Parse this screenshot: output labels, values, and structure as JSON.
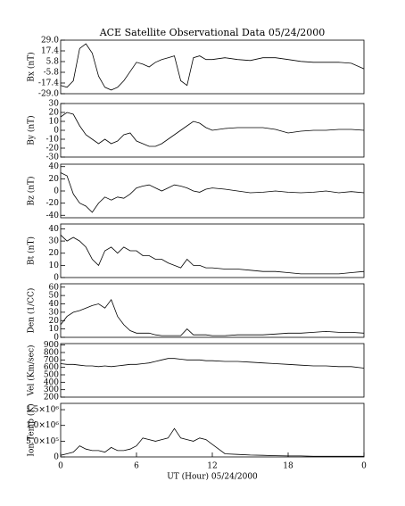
{
  "chart_data": [
    {
      "type": "line",
      "title": "ACE Satellite Observational Data   05/24/2000",
      "ylabel": "Bx (nT)",
      "color": "#000000",
      "xlim": [
        0,
        24
      ],
      "ylim": [
        -29,
        29
      ],
      "yticks": [
        {
          "value": 29,
          "label": "29.0"
        },
        17.4,
        5.8,
        -5.8,
        -17.4,
        {
          "value": -29,
          "label": "-29.0"
        }
      ],
      "x": [
        0,
        0.5,
        1,
        1.5,
        2,
        2.5,
        3,
        3.5,
        4,
        4.5,
        5,
        5.5,
        6,
        6.5,
        7,
        7.5,
        8,
        8.5,
        9,
        9.5,
        10,
        10.5,
        11,
        11.5,
        12,
        13,
        14,
        15,
        16,
        17,
        18,
        19,
        20,
        21,
        22,
        23,
        24
      ],
      "values": [
        -20,
        -22,
        -15,
        20,
        25,
        15,
        -10,
        -22,
        -25,
        -22,
        -15,
        -5,
        5,
        3,
        0,
        5,
        8,
        10,
        12,
        -15,
        -20,
        10,
        12,
        8,
        8,
        10,
        8,
        7,
        10,
        10,
        8,
        6,
        5,
        5,
        5,
        4,
        -2
      ]
    },
    {
      "type": "line",
      "ylabel": "By (nT)",
      "color": "#000000",
      "xlim": [
        0,
        24
      ],
      "ylim": [
        -30,
        30
      ],
      "yticks": [
        30,
        20,
        10,
        0,
        -10,
        -20,
        -30
      ],
      "x": [
        0,
        0.5,
        1,
        1.5,
        2,
        2.5,
        3,
        3.5,
        4,
        4.5,
        5,
        5.5,
        6,
        6.5,
        7,
        7.5,
        8,
        8.5,
        9,
        9.5,
        10,
        10.5,
        11,
        11.5,
        12,
        13,
        14,
        15,
        16,
        17,
        18,
        19,
        20,
        21,
        22,
        23,
        24
      ],
      "values": [
        15,
        20,
        18,
        5,
        -5,
        -10,
        -15,
        -10,
        -15,
        -12,
        -5,
        -3,
        -12,
        -15,
        -18,
        -18,
        -15,
        -10,
        -5,
        0,
        5,
        10,
        8,
        3,
        0,
        2,
        3,
        3,
        3,
        1,
        -3,
        -1,
        0,
        0,
        1,
        1,
        0
      ]
    },
    {
      "type": "line",
      "ylabel": "Bz (nT)",
      "color": "#000000",
      "xlim": [
        0,
        24
      ],
      "ylim": [
        -44,
        44
      ],
      "yticks": [
        40,
        20,
        0,
        -20,
        -40
      ],
      "x": [
        0,
        0.5,
        1,
        1.5,
        2,
        2.5,
        3,
        3.5,
        4,
        4.5,
        5,
        5.5,
        6,
        6.5,
        7,
        7.5,
        8,
        8.5,
        9,
        9.5,
        10,
        10.5,
        11,
        11.5,
        12,
        13,
        14,
        15,
        16,
        17,
        18,
        19,
        20,
        21,
        22,
        23,
        24
      ],
      "values": [
        30,
        25,
        -5,
        -20,
        -25,
        -35,
        -20,
        -10,
        -15,
        -10,
        -12,
        -5,
        5,
        8,
        10,
        5,
        0,
        5,
        10,
        8,
        5,
        0,
        -2,
        3,
        5,
        3,
        0,
        -3,
        -2,
        0,
        -2,
        -3,
        -2,
        0,
        -3,
        -1,
        -3
      ]
    },
    {
      "type": "line",
      "ylabel": "Bt (nT)",
      "color": "#000000",
      "xlim": [
        0,
        24
      ],
      "ylim": [
        0,
        44
      ],
      "yticks": [
        40,
        30,
        20,
        10,
        0
      ],
      "x": [
        0,
        0.5,
        1,
        1.5,
        2,
        2.5,
        3,
        3.5,
        4,
        4.5,
        5,
        5.5,
        6,
        6.5,
        7,
        7.5,
        8,
        8.5,
        9,
        9.5,
        10,
        10.5,
        11,
        11.5,
        12,
        13,
        14,
        15,
        16,
        17,
        18,
        19,
        20,
        21,
        22,
        23,
        24
      ],
      "values": [
        35,
        30,
        33,
        30,
        25,
        15,
        10,
        22,
        25,
        20,
        25,
        22,
        22,
        18,
        18,
        15,
        15,
        12,
        10,
        8,
        15,
        10,
        10,
        8,
        8,
        7,
        7,
        6,
        5,
        5,
        4,
        3,
        3,
        3,
        3,
        4,
        5
      ]
    },
    {
      "type": "line",
      "ylabel": "Den (1/CC)",
      "color": "#000000",
      "xlim": [
        0,
        24
      ],
      "ylim": [
        0,
        64
      ],
      "yticks": [
        60,
        50,
        40,
        30,
        20,
        10,
        0
      ],
      "x": [
        0,
        0.5,
        1,
        1.5,
        2,
        2.5,
        3,
        3.5,
        4,
        4.5,
        5,
        5.5,
        6,
        6.5,
        7,
        7.5,
        8,
        8.5,
        9,
        9.5,
        10,
        10.5,
        11,
        11.5,
        12,
        13,
        14,
        15,
        16,
        17,
        18,
        19,
        20,
        21,
        22,
        23,
        24
      ],
      "values": [
        15,
        25,
        30,
        32,
        35,
        38,
        40,
        35,
        45,
        25,
        15,
        8,
        5,
        5,
        5,
        3,
        2,
        2,
        2,
        2,
        10,
        3,
        3,
        3,
        2,
        2,
        3,
        3,
        3,
        4,
        5,
        5,
        6,
        7,
        6,
        6,
        5
      ]
    },
    {
      "type": "line",
      "ylabel": "Vel (Km/sec)",
      "color": "#000000",
      "xlim": [
        0,
        24
      ],
      "ylim": [
        200,
        920
      ],
      "yticks": [
        900,
        800,
        700,
        600,
        500,
        400,
        300,
        200
      ],
      "x": [
        0,
        0.5,
        1,
        1.5,
        2,
        2.5,
        3,
        3.5,
        4,
        4.5,
        5,
        5.5,
        6,
        6.5,
        7,
        7.5,
        8,
        8.5,
        9,
        9.5,
        10,
        10.5,
        11,
        11.5,
        12,
        13,
        14,
        15,
        16,
        17,
        18,
        19,
        20,
        21,
        22,
        23,
        24
      ],
      "values": [
        650,
        640,
        640,
        630,
        620,
        620,
        610,
        620,
        610,
        620,
        630,
        640,
        640,
        650,
        660,
        680,
        700,
        720,
        720,
        710,
        700,
        700,
        700,
        690,
        690,
        680,
        680,
        670,
        660,
        650,
        640,
        630,
        620,
        620,
        610,
        610,
        590
      ]
    },
    {
      "type": "line",
      "ylabel": "Ion Temp (K)",
      "xlabel": "UT (Hour)  05/24/2000",
      "color": "#000000",
      "xlim": [
        0,
        24
      ],
      "ylim": [
        0,
        1700000
      ],
      "yticks": [
        {
          "value": 1500000,
          "label": "1.5×10⁶"
        },
        {
          "value": 1000000,
          "label": "1.0×10⁶"
        },
        {
          "value": 500000,
          "label": "5.0×10⁵"
        },
        0
      ],
      "xticks": [
        0,
        6,
        12,
        18,
        {
          "value": 24,
          "label": "0"
        }
      ],
      "x": [
        0,
        0.5,
        1,
        1.5,
        2,
        2.5,
        3,
        3.5,
        4,
        4.5,
        5,
        5.5,
        6,
        6.5,
        7,
        7.5,
        8,
        8.5,
        9,
        9.5,
        10,
        10.5,
        11,
        11.5,
        12,
        13,
        14,
        15,
        16,
        17,
        18,
        19,
        20,
        21,
        22,
        23,
        24
      ],
      "values": [
        50000,
        100000,
        150000,
        350000,
        250000,
        200000,
        200000,
        150000,
        300000,
        200000,
        200000,
        250000,
        350000,
        600000,
        550000,
        500000,
        550000,
        600000,
        900000,
        600000,
        550000,
        500000,
        600000,
        550000,
        400000,
        100000,
        80000,
        60000,
        50000,
        40000,
        30000,
        30000,
        20000,
        20000,
        20000,
        20000,
        20000
      ]
    }
  ]
}
